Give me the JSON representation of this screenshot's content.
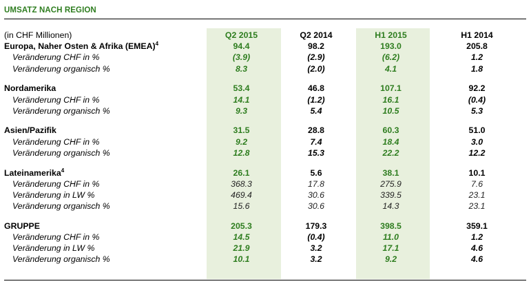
{
  "title": "UMSATZ NACH REGION",
  "unit_label": "(in CHF Millionen)",
  "columns": [
    "Q2 2015",
    "Q2 2014",
    "H1 2015",
    "H1 2014"
  ],
  "regions": [
    {
      "name": "Europa, Naher Osten & Afrika (EMEA)",
      "footnote": "4",
      "values": [
        "94.4",
        "98.2",
        "193.0",
        "205.8"
      ],
      "rows": [
        {
          "label": "Veränderung CHF in %",
          "values": [
            "(3.9)",
            "(2.9)",
            "(6.2)",
            "1.2"
          ]
        },
        {
          "label": "Veränderung organisch %",
          "values": [
            "8.3",
            "(2.0)",
            "4.1",
            "1.8"
          ]
        }
      ]
    },
    {
      "name": "Nordamerika",
      "footnote": "",
      "values": [
        "53.4",
        "46.8",
        "107.1",
        "92.2"
      ],
      "rows": [
        {
          "label": "Veränderung CHF in %",
          "values": [
            "14.1",
            "(1.2)",
            "16.1",
            "(0.4)"
          ]
        },
        {
          "label": "Veränderung organisch %",
          "values": [
            "9.3",
            "5.4",
            "10.5",
            "5.3"
          ]
        }
      ]
    },
    {
      "name": "Asien/Pazifik",
      "footnote": "",
      "values": [
        "31.5",
        "28.8",
        "60.3",
        "51.0"
      ],
      "rows": [
        {
          "label": "Veränderung CHF in %",
          "values": [
            "9.2",
            "7.4",
            "18.4",
            "3.0"
          ]
        },
        {
          "label": "Veränderung organisch %",
          "values": [
            "12.8",
            "15.3",
            "22.2",
            "12.2"
          ]
        }
      ]
    },
    {
      "name": "Lateinamerika",
      "footnote": "4",
      "values": [
        "26.1",
        "5.6",
        "38.1",
        "10.1"
      ],
      "rows": [
        {
          "label": "Veränderung CHF in %",
          "values": [
            "368.3",
            "17.8",
            "275.9",
            "7.6"
          ]
        },
        {
          "label": "Veränderung in LW %",
          "values": [
            "469.4",
            "30.6",
            "339.5",
            "23.1"
          ]
        },
        {
          "label": "Veränderung organisch %",
          "values": [
            "15.6",
            "30.6",
            "14.3",
            "23.1"
          ]
        }
      ]
    },
    {
      "name": "GRUPPE",
      "footnote": "",
      "values": [
        "205.3",
        "179.3",
        "398.5",
        "359.1"
      ],
      "rows": [
        {
          "label": "Veränderung CHF in %",
          "values": [
            "14.5",
            "(0.4)",
            "11.0",
            "1.2"
          ]
        },
        {
          "label": "Veränderung in LW %",
          "values": [
            "21.9",
            "3.2",
            "17.1",
            "4.6"
          ]
        },
        {
          "label": "Veränderung organisch %",
          "values": [
            "10.1",
            "3.2",
            "9.2",
            "4.6"
          ]
        }
      ]
    }
  ],
  "colors": {
    "accent_green": "#2e7d1f",
    "highlight_bg": "#e8f0dd"
  }
}
